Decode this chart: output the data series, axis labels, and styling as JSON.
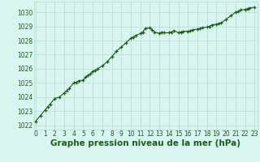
{
  "x": [
    0,
    0.5,
    1,
    1.25,
    1.5,
    2,
    2.5,
    3,
    3.25,
    3.5,
    4,
    4.25,
    4.5,
    5,
    5.25,
    5.5,
    5.75,
    6,
    6.25,
    6.5,
    7,
    7.5,
    8,
    8.5,
    9,
    9.5,
    10,
    10.25,
    10.5,
    11,
    11.25,
    11.5,
    12,
    12.25,
    12.5,
    13,
    13.25,
    13.5,
    14,
    14.25,
    14.5,
    15,
    15.25,
    15.5,
    16,
    16.25,
    16.5,
    17,
    17.25,
    17.5,
    18,
    18.25,
    18.5,
    19,
    19.25,
    19.5,
    20,
    20.5,
    21,
    21.25,
    21.5,
    22,
    22.25,
    22.5,
    23
  ],
  "y": [
    1022.3,
    1022.7,
    1023.1,
    1023.3,
    1023.5,
    1023.9,
    1024.0,
    1024.3,
    1024.45,
    1024.6,
    1025.0,
    1025.05,
    1025.15,
    1025.2,
    1025.4,
    1025.55,
    1025.65,
    1025.8,
    1025.9,
    1026.0,
    1026.2,
    1026.5,
    1026.85,
    1027.25,
    1027.55,
    1027.85,
    1028.15,
    1028.25,
    1028.35,
    1028.5,
    1028.6,
    1028.85,
    1028.9,
    1028.75,
    1028.6,
    1028.5,
    1028.6,
    1028.55,
    1028.55,
    1028.6,
    1028.7,
    1028.55,
    1028.6,
    1028.65,
    1028.65,
    1028.7,
    1028.75,
    1028.8,
    1028.85,
    1028.9,
    1028.95,
    1029.0,
    1029.1,
    1029.15,
    1029.2,
    1029.25,
    1029.5,
    1029.75,
    1030.0,
    1030.05,
    1030.15,
    1030.2,
    1030.25,
    1030.3,
    1030.35
  ],
  "line_color": "#1a5c1a",
  "marker_color": "#1a5c1a",
  "bg_color": "#d8f5f0",
  "grid_color": "#b8d8d0",
  "xlabel": "Graphe pression niveau de la mer (hPa)",
  "xlabel_color": "#1a5c1a",
  "xlabel_fontsize": 7.5,
  "ylabel_ticks": [
    1022,
    1023,
    1024,
    1025,
    1026,
    1027,
    1028,
    1029,
    1030
  ],
  "xticks": [
    0,
    1,
    2,
    3,
    4,
    5,
    6,
    7,
    8,
    9,
    10,
    11,
    12,
    13,
    14,
    15,
    16,
    17,
    18,
    19,
    20,
    21,
    22,
    23
  ],
  "xlim": [
    -0.2,
    23.3
  ],
  "ylim": [
    1021.7,
    1030.75
  ],
  "tick_fontsize": 5.5,
  "tick_color": "#1a5c1a",
  "line_width": 0.8,
  "marker_size": 3.0
}
